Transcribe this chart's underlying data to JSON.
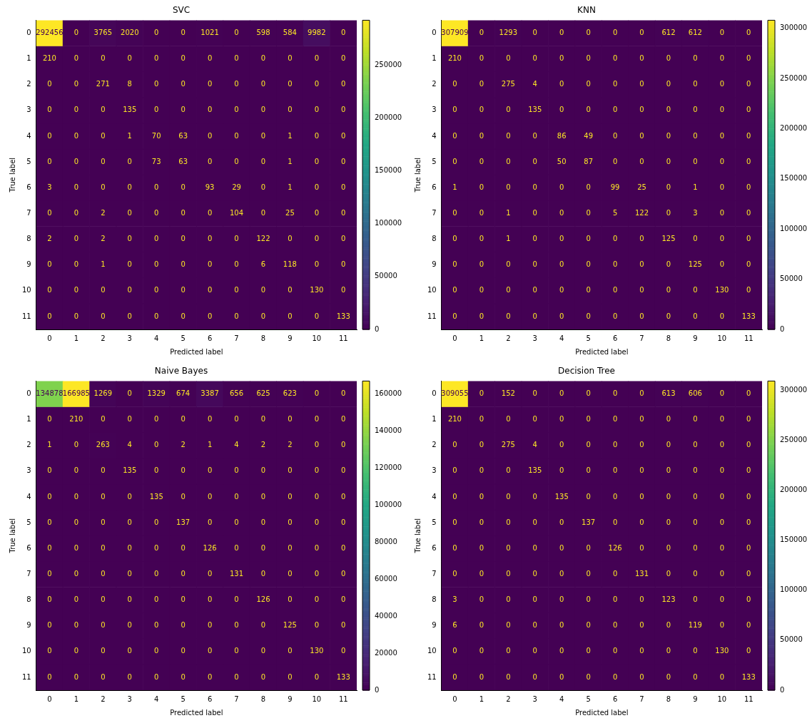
{
  "chart_data": [
    {
      "type": "heatmap",
      "title": "SVC",
      "xlabel": "Predicted label",
      "ylabel": "True label",
      "categories": [
        "0",
        "1",
        "2",
        "3",
        "4",
        "5",
        "6",
        "7",
        "8",
        "9",
        "10",
        "11"
      ],
      "y_categories": [
        "0",
        "1",
        "2",
        "3",
        "4",
        "5",
        "6",
        "7",
        "8",
        "9",
        "10",
        "11"
      ],
      "data_labels": true,
      "clim": [
        0,
        292456
      ],
      "cticks": [
        0,
        50000,
        100000,
        150000,
        200000,
        250000
      ],
      "cells": [
        [
          292456,
          0,
          3765,
          2020,
          0,
          0,
          1021,
          0,
          598,
          584,
          9982,
          0
        ],
        [
          210,
          0,
          0,
          0,
          0,
          0,
          0,
          0,
          0,
          0,
          0,
          0
        ],
        [
          0,
          0,
          271,
          8,
          0,
          0,
          0,
          0,
          0,
          0,
          0,
          0
        ],
        [
          0,
          0,
          0,
          135,
          0,
          0,
          0,
          0,
          0,
          0,
          0,
          0
        ],
        [
          0,
          0,
          0,
          1,
          70,
          63,
          0,
          0,
          0,
          1,
          0,
          0
        ],
        [
          0,
          0,
          0,
          0,
          73,
          63,
          0,
          0,
          0,
          1,
          0,
          0
        ],
        [
          3,
          0,
          0,
          0,
          0,
          0,
          93,
          29,
          0,
          1,
          0,
          0
        ],
        [
          0,
          0,
          2,
          0,
          0,
          0,
          0,
          104,
          0,
          25,
          0,
          0
        ],
        [
          2,
          0,
          2,
          0,
          0,
          0,
          0,
          0,
          122,
          0,
          0,
          0
        ],
        [
          0,
          0,
          1,
          0,
          0,
          0,
          0,
          0,
          6,
          118,
          0,
          0
        ],
        [
          0,
          0,
          0,
          0,
          0,
          0,
          0,
          0,
          0,
          0,
          130,
          0
        ],
        [
          0,
          0,
          0,
          0,
          0,
          0,
          0,
          0,
          0,
          0,
          0,
          133
        ]
      ]
    },
    {
      "type": "heatmap",
      "title": "KNN",
      "xlabel": "Predicted label",
      "ylabel": "True label",
      "categories": [
        "0",
        "1",
        "2",
        "3",
        "4",
        "5",
        "6",
        "7",
        "8",
        "9",
        "10",
        "11"
      ],
      "y_categories": [
        "0",
        "1",
        "2",
        "3",
        "4",
        "5",
        "6",
        "7",
        "8",
        "9",
        "10",
        "11"
      ],
      "data_labels": true,
      "clim": [
        0,
        307909
      ],
      "cticks": [
        0,
        50000,
        100000,
        150000,
        200000,
        250000,
        300000
      ],
      "cells": [
        [
          307909,
          0,
          1293,
          0,
          0,
          0,
          0,
          0,
          612,
          612,
          0,
          0
        ],
        [
          210,
          0,
          0,
          0,
          0,
          0,
          0,
          0,
          0,
          0,
          0,
          0
        ],
        [
          0,
          0,
          275,
          4,
          0,
          0,
          0,
          0,
          0,
          0,
          0,
          0
        ],
        [
          0,
          0,
          0,
          135,
          0,
          0,
          0,
          0,
          0,
          0,
          0,
          0
        ],
        [
          0,
          0,
          0,
          0,
          86,
          49,
          0,
          0,
          0,
          0,
          0,
          0
        ],
        [
          0,
          0,
          0,
          0,
          50,
          87,
          0,
          0,
          0,
          0,
          0,
          0
        ],
        [
          1,
          0,
          0,
          0,
          0,
          0,
          99,
          25,
          0,
          1,
          0,
          0
        ],
        [
          0,
          0,
          1,
          0,
          0,
          0,
          5,
          122,
          0,
          3,
          0,
          0
        ],
        [
          0,
          0,
          1,
          0,
          0,
          0,
          0,
          0,
          125,
          0,
          0,
          0
        ],
        [
          0,
          0,
          0,
          0,
          0,
          0,
          0,
          0,
          0,
          125,
          0,
          0
        ],
        [
          0,
          0,
          0,
          0,
          0,
          0,
          0,
          0,
          0,
          0,
          130,
          0
        ],
        [
          0,
          0,
          0,
          0,
          0,
          0,
          0,
          0,
          0,
          0,
          0,
          133
        ]
      ]
    },
    {
      "type": "heatmap",
      "title": "Naive Bayes",
      "xlabel": "Predicted label",
      "ylabel": "True label",
      "categories": [
        "0",
        "1",
        "2",
        "3",
        "4",
        "5",
        "6",
        "7",
        "8",
        "9",
        "10",
        "11"
      ],
      "y_categories": [
        "0",
        "1",
        "2",
        "3",
        "4",
        "5",
        "6",
        "7",
        "8",
        "9",
        "10",
        "11"
      ],
      "data_labels": true,
      "clim": [
        0,
        166985
      ],
      "cticks": [
        0,
        20000,
        40000,
        60000,
        80000,
        100000,
        120000,
        140000,
        160000
      ],
      "cells": [
        [
          134878,
          166985,
          1269,
          0,
          1329,
          674,
          3387,
          656,
          625,
          623,
          0,
          0
        ],
        [
          0,
          210,
          0,
          0,
          0,
          0,
          0,
          0,
          0,
          0,
          0,
          0
        ],
        [
          1,
          0,
          263,
          4,
          0,
          2,
          1,
          4,
          2,
          2,
          0,
          0
        ],
        [
          0,
          0,
          0,
          135,
          0,
          0,
          0,
          0,
          0,
          0,
          0,
          0
        ],
        [
          0,
          0,
          0,
          0,
          135,
          0,
          0,
          0,
          0,
          0,
          0,
          0
        ],
        [
          0,
          0,
          0,
          0,
          0,
          137,
          0,
          0,
          0,
          0,
          0,
          0
        ],
        [
          0,
          0,
          0,
          0,
          0,
          0,
          126,
          0,
          0,
          0,
          0,
          0
        ],
        [
          0,
          0,
          0,
          0,
          0,
          0,
          0,
          131,
          0,
          0,
          0,
          0
        ],
        [
          0,
          0,
          0,
          0,
          0,
          0,
          0,
          0,
          126,
          0,
          0,
          0
        ],
        [
          0,
          0,
          0,
          0,
          0,
          0,
          0,
          0,
          0,
          125,
          0,
          0
        ],
        [
          0,
          0,
          0,
          0,
          0,
          0,
          0,
          0,
          0,
          0,
          130,
          0
        ],
        [
          0,
          0,
          0,
          0,
          0,
          0,
          0,
          0,
          0,
          0,
          0,
          133
        ]
      ]
    },
    {
      "type": "heatmap",
      "title": "Decision Tree",
      "xlabel": "Predicted label",
      "ylabel": "True label",
      "categories": [
        "0",
        "1",
        "2",
        "3",
        "4",
        "5",
        "6",
        "7",
        "8",
        "9",
        "10",
        "11"
      ],
      "y_categories": [
        "0",
        "1",
        "2",
        "3",
        "4",
        "5",
        "6",
        "7",
        "8",
        "9",
        "10",
        "11"
      ],
      "data_labels": true,
      "clim": [
        0,
        309055
      ],
      "cticks": [
        0,
        50000,
        100000,
        150000,
        200000,
        250000,
        300000
      ],
      "cells": [
        [
          309055,
          0,
          152,
          0,
          0,
          0,
          0,
          0,
          613,
          606,
          0,
          0
        ],
        [
          210,
          0,
          0,
          0,
          0,
          0,
          0,
          0,
          0,
          0,
          0,
          0
        ],
        [
          0,
          0,
          275,
          4,
          0,
          0,
          0,
          0,
          0,
          0,
          0,
          0
        ],
        [
          0,
          0,
          0,
          135,
          0,
          0,
          0,
          0,
          0,
          0,
          0,
          0
        ],
        [
          0,
          0,
          0,
          0,
          135,
          0,
          0,
          0,
          0,
          0,
          0,
          0
        ],
        [
          0,
          0,
          0,
          0,
          0,
          137,
          0,
          0,
          0,
          0,
          0,
          0
        ],
        [
          0,
          0,
          0,
          0,
          0,
          0,
          126,
          0,
          0,
          0,
          0,
          0
        ],
        [
          0,
          0,
          0,
          0,
          0,
          0,
          0,
          131,
          0,
          0,
          0,
          0
        ],
        [
          3,
          0,
          0,
          0,
          0,
          0,
          0,
          0,
          123,
          0,
          0,
          0
        ],
        [
          6,
          0,
          0,
          0,
          0,
          0,
          0,
          0,
          0,
          119,
          0,
          0
        ],
        [
          0,
          0,
          0,
          0,
          0,
          0,
          0,
          0,
          0,
          0,
          130,
          0
        ],
        [
          0,
          0,
          0,
          0,
          0,
          0,
          0,
          0,
          0,
          0,
          0,
          133
        ]
      ]
    }
  ]
}
